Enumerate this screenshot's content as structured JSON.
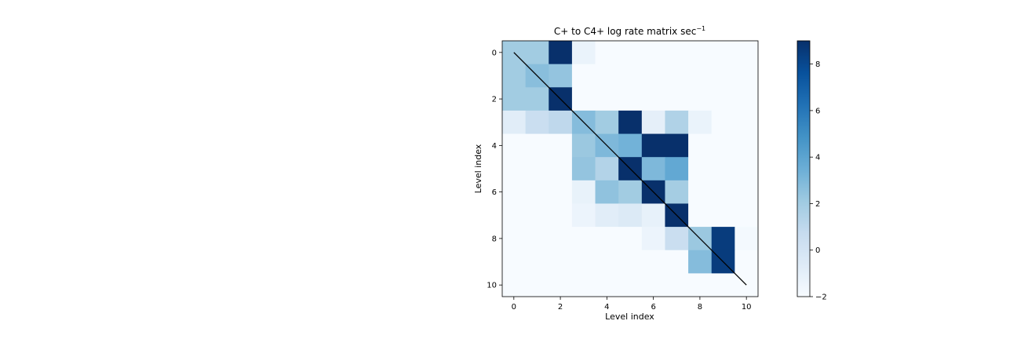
{
  "chart_data": {
    "type": "heatmap",
    "title": "C+ to C4+ log rate matrix sec",
    "title_superscript": "−1",
    "xlabel": "Level index",
    "ylabel": "Level index",
    "x_ticks": [
      0,
      2,
      4,
      6,
      8,
      10
    ],
    "y_ticks": [
      0,
      2,
      4,
      6,
      8,
      10
    ],
    "colormap": "Blues",
    "colorbar": {
      "min": -2,
      "max": 9,
      "ticks": [
        -2,
        0,
        2,
        4,
        6,
        8
      ]
    },
    "grid": false,
    "diagonal_line": {
      "from": [
        0,
        0
      ],
      "to": [
        10,
        10
      ],
      "color": "#000000"
    },
    "matrix": [
      [
        2.0,
        2.0,
        9.0,
        -1.3,
        -2,
        -2,
        -2,
        -2,
        -2,
        -2,
        -2
      ],
      [
        2.0,
        2.7,
        2.4,
        -2,
        -2,
        -2,
        -2,
        -2,
        -2,
        -2,
        -2
      ],
      [
        2.0,
        2.0,
        9.0,
        -2,
        -2,
        -2,
        -2,
        -2,
        -2,
        -2,
        -2
      ],
      [
        -0.8,
        0.5,
        1.0,
        2.8,
        2.0,
        9.0,
        -1.0,
        1.5,
        -1.3,
        -2,
        -2
      ],
      [
        -2,
        -2,
        -2,
        2.2,
        3.0,
        3.3,
        9.0,
        9.0,
        -2,
        -2,
        -2
      ],
      [
        -2,
        -2,
        -2,
        2.4,
        1.4,
        9.0,
        3.0,
        3.8,
        -2,
        -2,
        -2
      ],
      [
        -2,
        -2,
        -2,
        -1.2,
        2.5,
        2.0,
        9.0,
        1.9,
        -2,
        -2,
        -2
      ],
      [
        -2,
        -2,
        -2,
        -1.4,
        -0.8,
        -0.5,
        -1.1,
        9.0,
        -2,
        -2,
        -2
      ],
      [
        -2,
        -2,
        -2,
        -2,
        -2,
        -2,
        -1.4,
        0.5,
        2.2,
        8.5,
        -1.8
      ],
      [
        -2,
        -2,
        -2,
        -2,
        -2,
        -2,
        -2,
        -2,
        2.8,
        8.5,
        -2
      ],
      [
        -2,
        -2,
        -2,
        -2,
        -2,
        -2,
        -2,
        -2,
        -2,
        -2,
        -2
      ]
    ]
  }
}
